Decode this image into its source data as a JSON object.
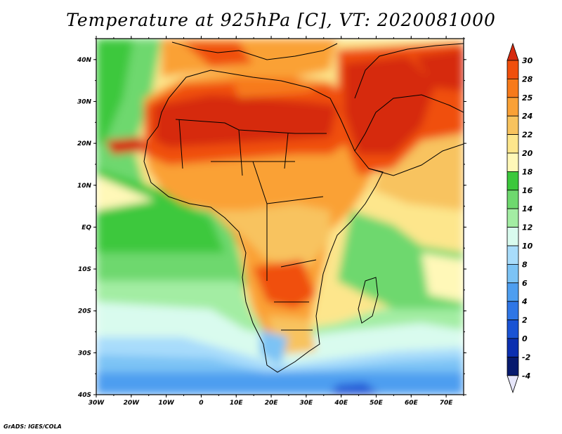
{
  "title": "Temperature at 925hPa [C], VT: 2020081000",
  "credit": "GrADS: IGES/COLA",
  "map": {
    "lat_labels": [
      "40N",
      "30N",
      "20N",
      "10N",
      "EQ",
      "10S",
      "20S",
      "30S",
      "40S"
    ],
    "lon_labels": [
      "30W",
      "20W",
      "10W",
      "0",
      "10E",
      "20E",
      "30E",
      "40E",
      "50E",
      "60E",
      "70E"
    ]
  },
  "colorbar": {
    "levels": [
      "30",
      "28",
      "25",
      "24",
      "22",
      "20",
      "18",
      "16",
      "14",
      "12",
      "10",
      "8",
      "6",
      "4",
      "2",
      "0",
      "-2",
      "-4"
    ],
    "colors": [
      "#d62a0f",
      "#f04f0c",
      "#f77a1a",
      "#faa136",
      "#f8c35e",
      "#fde68c",
      "#fff8b8",
      "#3cc83c",
      "#6ed86e",
      "#a3eda3",
      "#d9fbee",
      "#a8dcfb",
      "#7cc3f5",
      "#4e9ef0",
      "#2f76e6",
      "#1a53d4",
      "#0b2fb0",
      "#071a6e",
      "#e6e6fa"
    ]
  }
}
